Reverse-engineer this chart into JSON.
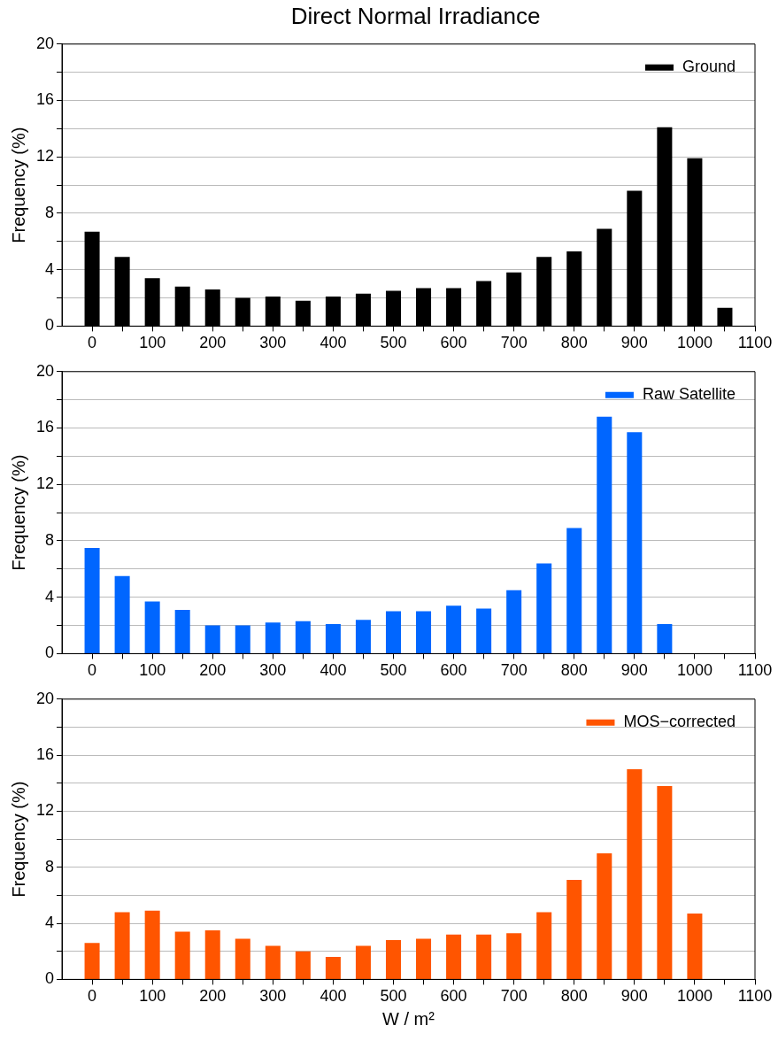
{
  "chart_data": [
    {
      "type": "bar",
      "title": "Direct Normal Irradiance",
      "ylabel": "Frequency (%)",
      "x": [
        0,
        50,
        100,
        150,
        200,
        250,
        300,
        350,
        400,
        450,
        500,
        550,
        600,
        650,
        700,
        750,
        800,
        850,
        900,
        950,
        1000,
        1050
      ],
      "series": [
        {
          "name": "Ground",
          "color": "#000000",
          "values": [
            6.7,
            4.9,
            3.4,
            2.8,
            2.6,
            2.0,
            2.1,
            1.8,
            2.1,
            2.3,
            2.5,
            2.7,
            2.7,
            3.2,
            3.8,
            4.9,
            5.3,
            6.9,
            9.6,
            14.1,
            11.9,
            1.3
          ]
        }
      ],
      "xlim": [
        -50,
        1100
      ],
      "xticks": [
        0,
        {
          "value": 50,
          "label": null
        },
        100,
        {
          "value": 150,
          "label": null
        },
        200,
        {
          "value": 250,
          "label": null
        },
        300,
        {
          "value": 350,
          "label": null
        },
        400,
        {
          "value": 450,
          "label": null
        },
        500,
        {
          "value": 550,
          "label": null
        },
        600,
        {
          "value": 650,
          "label": null
        },
        700,
        {
          "value": 750,
          "label": null
        },
        800,
        {
          "value": 850,
          "label": null
        },
        900,
        {
          "value": 950,
          "label": null
        },
        1000,
        {
          "value": 1050,
          "label": null
        },
        1100
      ],
      "ylim": [
        0,
        20
      ],
      "yticks": [
        0,
        {
          "value": 2,
          "label": null
        },
        4,
        {
          "value": 6,
          "label": null
        },
        8,
        {
          "value": 10,
          "label": null
        },
        12,
        {
          "value": 14,
          "label": null
        },
        16,
        {
          "value": 18,
          "label": null
        },
        20
      ],
      "grid": "y",
      "legend": "top right"
    },
    {
      "type": "bar",
      "ylabel": "Frequency (%)",
      "x": [
        0,
        50,
        100,
        150,
        200,
        250,
        300,
        350,
        400,
        450,
        500,
        550,
        600,
        650,
        700,
        750,
        800,
        850,
        900,
        950,
        1000,
        1050
      ],
      "series": [
        {
          "name": "Raw Satellite",
          "color": "#0066ff",
          "values": [
            7.5,
            5.5,
            3.7,
            3.1,
            2.0,
            2.0,
            2.2,
            2.3,
            2.1,
            2.4,
            3.0,
            3.0,
            3.4,
            3.2,
            4.5,
            6.4,
            8.9,
            16.8,
            15.7,
            2.1,
            0,
            0
          ]
        }
      ],
      "xlim": [
        -50,
        1100
      ],
      "xticks": [
        0,
        {
          "value": 50,
          "label": null
        },
        100,
        {
          "value": 150,
          "label": null
        },
        200,
        {
          "value": 250,
          "label": null
        },
        300,
        {
          "value": 350,
          "label": null
        },
        400,
        {
          "value": 450,
          "label": null
        },
        500,
        {
          "value": 550,
          "label": null
        },
        600,
        {
          "value": 650,
          "label": null
        },
        700,
        {
          "value": 750,
          "label": null
        },
        800,
        {
          "value": 850,
          "label": null
        },
        900,
        {
          "value": 950,
          "label": null
        },
        1000,
        {
          "value": 1050,
          "label": null
        },
        1100
      ],
      "ylim": [
        0,
        20
      ],
      "yticks": [
        0,
        {
          "value": 2,
          "label": null
        },
        4,
        {
          "value": 6,
          "label": null
        },
        8,
        {
          "value": 10,
          "label": null
        },
        12,
        {
          "value": 14,
          "label": null
        },
        16,
        {
          "value": 18,
          "label": null
        },
        20
      ],
      "grid": "y",
      "legend": "top right"
    },
    {
      "type": "bar",
      "ylabel": "Frequency (%)",
      "xlabel": "W / m²",
      "x": [
        0,
        50,
        100,
        150,
        200,
        250,
        300,
        350,
        400,
        450,
        500,
        550,
        600,
        650,
        700,
        750,
        800,
        850,
        900,
        950,
        1000,
        1050
      ],
      "series": [
        {
          "name": "MOS−corrected",
          "color": "#ff5500",
          "values": [
            2.6,
            4.8,
            4.9,
            3.4,
            3.5,
            2.9,
            2.4,
            2.0,
            1.6,
            2.4,
            2.8,
            2.9,
            3.2,
            3.2,
            3.3,
            4.8,
            7.1,
            9.0,
            15.0,
            13.8,
            4.7,
            0
          ]
        }
      ],
      "xlim": [
        -50,
        1100
      ],
      "xticks": [
        0,
        {
          "value": 50,
          "label": null
        },
        100,
        {
          "value": 150,
          "label": null
        },
        200,
        {
          "value": 250,
          "label": null
        },
        300,
        {
          "value": 350,
          "label": null
        },
        400,
        {
          "value": 450,
          "label": null
        },
        500,
        {
          "value": 550,
          "label": null
        },
        600,
        {
          "value": 650,
          "label": null
        },
        700,
        {
          "value": 750,
          "label": null
        },
        800,
        {
          "value": 850,
          "label": null
        },
        900,
        {
          "value": 950,
          "label": null
        },
        1000,
        {
          "value": 1050,
          "label": null
        },
        1100
      ],
      "ylim": [
        0,
        20
      ],
      "yticks": [
        0,
        {
          "value": 2,
          "label": null
        },
        4,
        {
          "value": 6,
          "label": null
        },
        8,
        {
          "value": 10,
          "label": null
        },
        12,
        {
          "value": 14,
          "label": null
        },
        16,
        {
          "value": 18,
          "label": null
        },
        20
      ],
      "grid": "y",
      "legend": "top right"
    }
  ]
}
